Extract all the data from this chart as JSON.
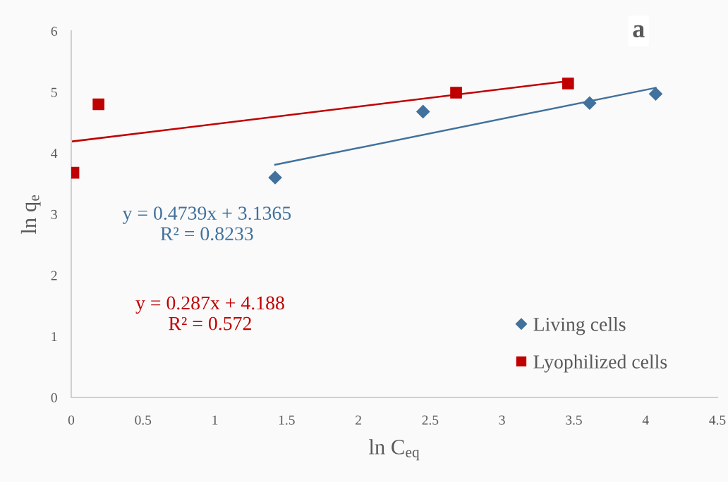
{
  "chart_data": {
    "type": "scatter",
    "xlabel": "ln C$_{eq}$",
    "ylabel": "ln q$_{e}$",
    "xlim": [
      0,
      4.5
    ],
    "xticks": [
      0,
      0.5,
      1,
      1.5,
      2,
      2.5,
      3,
      3.5,
      4,
      4.5
    ],
    "ylim": [
      0,
      6
    ],
    "yticks": [
      0,
      1,
      2,
      3,
      4,
      5,
      6
    ],
    "grid": false,
    "legend": "bottom right",
    "series": [
      {
        "name": "Living cells",
        "marker": "diamond",
        "color": "#41719c",
        "x": [
          1.42,
          2.45,
          3.61,
          4.07
        ],
        "values": [
          3.6,
          4.68,
          4.82,
          4.97
        ]
      },
      {
        "name": "Lyophilized cells",
        "marker": "square",
        "color": "#c00000",
        "x": [
          0.015,
          0.19,
          2.68,
          3.46
        ],
        "values": [
          3.68,
          4.8,
          4.99,
          5.14
        ]
      },
      {
        "type": "line",
        "color": "#41719c",
        "x": [
          1.42,
          4.07
        ],
        "values": [
          3.81,
          5.07
        ]
      },
      {
        "type": "line",
        "color": "#c00000",
        "x": [
          0,
          3.46
        ],
        "values": [
          4.19,
          5.18
        ]
      }
    ],
    "annotations": [
      "y = 0.4739x + 3.1365\nR² = 0.8233",
      "y = 0.287x + 4.188\nR² = 0.572",
      "a"
    ]
  }
}
